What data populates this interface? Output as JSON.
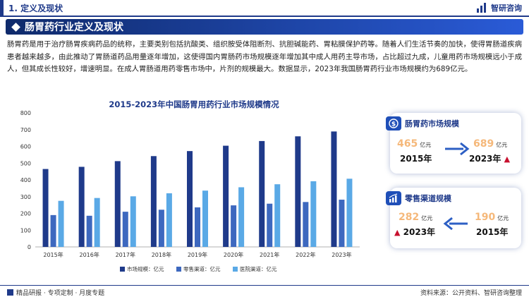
{
  "header": {
    "section_label": "1. 定义及现状",
    "brand": "智研咨询"
  },
  "banner": {
    "title": "肠胃药行业定义及现状"
  },
  "intro": "肠胃药是用于治疗肠胃疾病药品的统称，主要类别包括抗酸类、组织胺受体阻断剂、抗胆碱能药、胃粘膜保护药等。随着人们生活节奏的加快，使得胃肠道疾病患者越来越多，由此推动了胃肠道药品用量逐年增加，这使得国内胃肠药市场规模逐年增加其中成人用药主导市场，占比超过九成，儿童用药市场规模远小于成人，但其成长性较好，增速明显。在成人胃肠道用药零售市场中，片剂的规模最大。数据显示，2023年我国肠胃药行业市场规模约为689亿元。",
  "chart_data": {
    "type": "bar",
    "title": "2015-2023年中国肠胃用药行业市场规模情况",
    "categories": [
      "2015年",
      "2016年",
      "2017年",
      "2018年",
      "2019年",
      "2020年",
      "2021年",
      "2022年",
      "2023年"
    ],
    "series": [
      {
        "name": "市场规模：亿元",
        "color": "#1f3a8a",
        "values": [
          465,
          478,
          512,
          542,
          572,
          604,
          632,
          660,
          689
        ]
      },
      {
        "name": "零售渠道：亿元",
        "color": "#3d68bf",
        "values": [
          190,
          186,
          210,
          222,
          236,
          248,
          258,
          268,
          282
        ]
      },
      {
        "name": "医院渠道：亿元",
        "color": "#5aa9e6",
        "values": [
          275,
          292,
          302,
          320,
          336,
          356,
          374,
          392,
          407
        ]
      }
    ],
    "ylim": [
      0,
      800
    ],
    "yticks": [
      "0",
      "100",
      "200",
      "300",
      "400",
      "500",
      "600",
      "700",
      "800"
    ],
    "legend_position": "bottom",
    "grid": false
  },
  "cards": [
    {
      "title": "肠胃药市场规模",
      "from_value": "465",
      "from_unit": "亿元",
      "from_year": "2015年",
      "to_value": "689",
      "to_unit": "亿元",
      "to_year": "2023年",
      "icon": "dollar-icon"
    },
    {
      "title": "零售渠道规模",
      "left_value": "282",
      "left_unit": "亿元",
      "left_year": "2023年",
      "right_value": "190",
      "right_unit": "亿元",
      "right_year": "2015年",
      "icon": "growth-chart-icon"
    }
  ],
  "footer": {
    "left": "精品研报 · 专项定制 · 月度专题",
    "right": "资料来源：公开资料、智研咨询整理"
  }
}
